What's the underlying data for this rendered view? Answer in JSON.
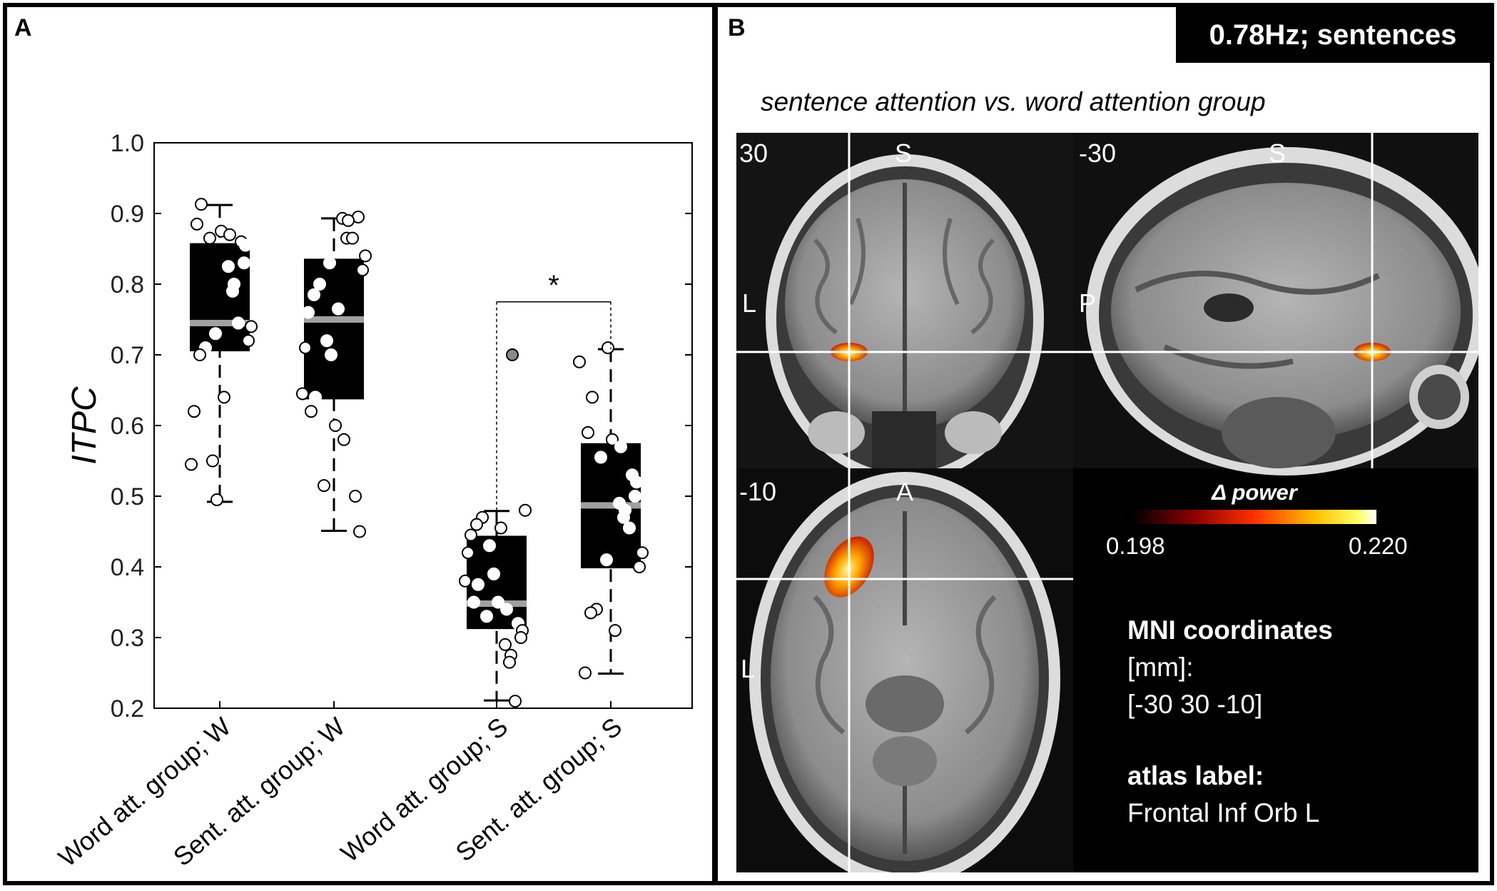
{
  "panel_a": {
    "label": "A",
    "chart_data": {
      "type": "box",
      "ylabel": "ITPC",
      "ylim": [
        0.2,
        1.0
      ],
      "yticks": [
        "1.0",
        "0.9",
        "0.8",
        "0.7",
        "0.6",
        "0.5",
        "0.4",
        "0.3",
        "0.2"
      ],
      "categories": [
        "Word att. group; W",
        "Sent. att. group; W",
        "Word att. group; S",
        "Sent. att. group; S"
      ],
      "boxes": [
        {
          "q1": 0.705,
          "median": 0.745,
          "q3": 0.858,
          "whisker_low": 0.492,
          "whisker_high": 0.912
        },
        {
          "q1": 0.637,
          "median": 0.75,
          "q3": 0.836,
          "whisker_low": 0.451,
          "whisker_high": 0.893
        },
        {
          "q1": 0.312,
          "median": 0.348,
          "q3": 0.444,
          "whisker_low": 0.211,
          "whisker_high": 0.479
        },
        {
          "q1": 0.398,
          "median": 0.487,
          "q3": 0.575,
          "whisker_low": 0.249,
          "whisker_high": 0.708
        }
      ],
      "points": [
        [
          0.913,
          0.885,
          0.875,
          0.87,
          0.865,
          0.86,
          0.855,
          0.83,
          0.825,
          0.8,
          0.79,
          0.745,
          0.74,
          0.73,
          0.72,
          0.71,
          0.7,
          0.64,
          0.62,
          0.55,
          0.545,
          0.495
        ],
        [
          0.895,
          0.893,
          0.89,
          0.865,
          0.865,
          0.84,
          0.83,
          0.82,
          0.8,
          0.785,
          0.765,
          0.76,
          0.72,
          0.71,
          0.7,
          0.645,
          0.64,
          0.62,
          0.6,
          0.58,
          0.515,
          0.5,
          0.45
        ],
        [
          0.48,
          0.47,
          0.46,
          0.455,
          0.445,
          0.43,
          0.42,
          0.39,
          0.38,
          0.375,
          0.35,
          0.35,
          0.34,
          0.33,
          0.32,
          0.31,
          0.3,
          0.29,
          0.275,
          0.265,
          0.21
        ],
        [
          0.71,
          0.69,
          0.64,
          0.59,
          0.58,
          0.57,
          0.555,
          0.53,
          0.52,
          0.5,
          0.49,
          0.48,
          0.47,
          0.455,
          0.42,
          0.41,
          0.4,
          0.34,
          0.335,
          0.31,
          0.25
        ]
      ],
      "outlier": {
        "group": 2,
        "value": 0.7
      },
      "significance": {
        "label": "*",
        "groups": [
          2,
          3
        ]
      }
    }
  },
  "panel_b": {
    "label": "B",
    "badge": "0.78Hz; sentences",
    "subtitle": "sentence attention vs. word attention group",
    "coronal": {
      "slice": "30",
      "top": "S",
      "side": "L"
    },
    "sagittal": {
      "slice": "-30",
      "top": "S",
      "side": "P"
    },
    "axial": {
      "slice": "-10",
      "top": "A",
      "side": "L"
    },
    "colorbar": {
      "title": "Δ power",
      "min": "0.198",
      "max": "0.220"
    },
    "mni": {
      "title": "MNI coordinates",
      "unit": "[mm]:",
      "value": "[-30 30 -10]"
    },
    "atlas": {
      "title": "atlas label:",
      "value": "Frontal Inf Orb L"
    },
    "colors": {
      "blob_core": "#fff8a0",
      "blob_mid": "#ffa500",
      "blob_edge": "#c81e00",
      "crosshair": "#ffffff"
    }
  }
}
